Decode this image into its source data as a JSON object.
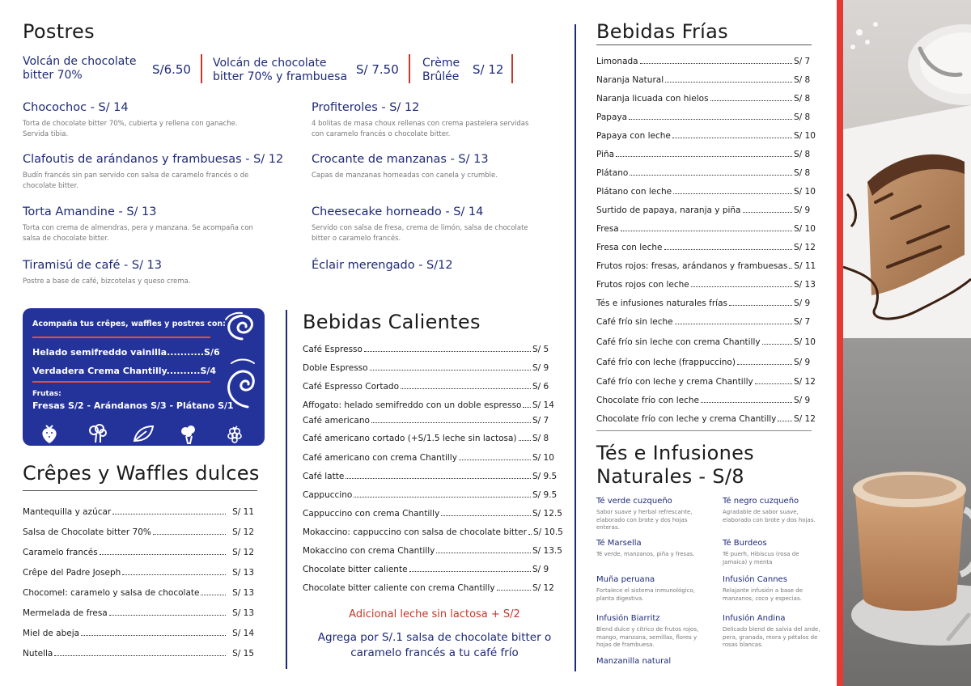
{
  "postres": {
    "title": "Postres",
    "featured": [
      {
        "name": "Volcán de chocolate bitter 70%",
        "price": "S/6.50"
      },
      {
        "name": "Volcán de chocolate bitter 70% y frambuesa",
        "price": "S/ 7.50"
      },
      {
        "name": "Crème Brûlée",
        "price": "S/ 12"
      }
    ],
    "items": [
      {
        "name": "Chocochoc - S/ 14",
        "desc": "Torta de chocolate bitter 70%, cubierta y rellena con ganache. Servida tibia."
      },
      {
        "name": "Profiteroles - S/ 12",
        "desc": "4 bolitas de masa choux rellenas con crema pastelera servidas con caramelo francés o chocolate bitter."
      },
      {
        "name": "Clafoutis de arándanos y frambuesas - S/ 12",
        "desc": "Budín francés sin pan servido con salsa de caramelo francés o de chocolate bitter."
      },
      {
        "name": "Crocante de manzanas - S/ 13",
        "desc": "Capas de manzanas horneadas con canela y crumble."
      },
      {
        "name": "Torta Amandine - S/ 13",
        "desc": "Torta con crema de almendras, pera y manzana. Se acompaña con salsa de chocolate bitter."
      },
      {
        "name": "Cheesecake horneado - S/ 14",
        "desc": "Servido con salsa de fresa, crema de limón, salsa de chocolate bitter o caramelo francés."
      },
      {
        "name": "Tiramisú de café - S/ 13",
        "desc": "Postre a base de café, bizcotelas y queso crema."
      },
      {
        "name": "Éclair merengado - S/12",
        "desc": ""
      }
    ]
  },
  "promo": {
    "title": "Acompaña tus crêpes, waffles y postres con:",
    "item1": "Helado semifreddo vainilla...........S/6",
    "item2": "Verdadera Crema Chantilly..........S/4",
    "frutas_label": "Frutas:",
    "frutas": "Fresas S/2 - Arándanos S/3 - Plátano S/1",
    "icons": [
      "strawberry-icon",
      "broccoli-icon",
      "leaf-icon",
      "cauliflower-icon",
      "raspberry-icon"
    ]
  },
  "crepes": {
    "title": "Crêpes y Waffles dulces",
    "items": [
      {
        "name": "Mantequilla y azúcar",
        "price": "S/ 11"
      },
      {
        "name": "Salsa de Chocolate bitter 70%",
        "price": "S/ 12"
      },
      {
        "name": "Caramelo francés",
        "price": "S/ 12"
      },
      {
        "name": "Crêpe del Padre Joseph",
        "price": "S/ 13"
      },
      {
        "name": "Chocomel: caramelo y salsa de chocolate",
        "price": "S/ 13"
      },
      {
        "name": "Mermelada de fresa",
        "price": "S/ 13"
      },
      {
        "name": "Miel de abeja",
        "price": "S/ 14"
      },
      {
        "name": "Nutella",
        "price": "S/ 15"
      }
    ]
  },
  "calientes": {
    "title": "Bebidas Calientes",
    "items": [
      {
        "name": "Café Espresso",
        "price": "S/ 5"
      },
      {
        "name": "Doble Espresso",
        "price": "S/ 9"
      },
      {
        "name": "Café Espresso Cortado",
        "price": "S/ 6"
      },
      {
        "name": "Affogato: helado semifreddo con un doble espresso",
        "price": "S/ 14"
      },
      {
        "name": "Café americano",
        "price": "S/ 7"
      },
      {
        "name": "Café americano cortado (+S/1.5 leche sin lactosa)",
        "price": "S/ 8"
      },
      {
        "name": "Café americano con crema Chantilly",
        "price": "S/ 10"
      },
      {
        "name": "Café latte",
        "price": "S/ 9.5"
      },
      {
        "name": "Cappuccino",
        "price": "S/ 9.5"
      },
      {
        "name": "Cappuccino con crema Chantilly",
        "price": "S/ 12.5"
      },
      {
        "name": "Mokaccino: cappuccino con salsa de chocolate bitter",
        "price": "S/ 10.5"
      },
      {
        "name": "Mokaccino con crema Chantilly",
        "price": "S/ 13.5"
      },
      {
        "name": "Chocolate bitter caliente",
        "price": "S/ 9"
      },
      {
        "name": "Chocolate bitter caliente con crema Chantilly",
        "price": "S/ 12"
      }
    ],
    "footer1": "Adicional leche sin lactosa + S/2",
    "footer2": "Agrega por S/.1 salsa de chocolate bitter o caramelo francés a tu café frío"
  },
  "frias": {
    "title": "Bebidas Frías",
    "items": [
      {
        "name": "Limonada",
        "price": "S/ 7"
      },
      {
        "name": "Naranja Natural",
        "price": "S/ 8"
      },
      {
        "name": "Naranja licuada con hielos",
        "price": "S/ 8"
      },
      {
        "name": "Papaya",
        "price": "S/ 8"
      },
      {
        "name": "Papaya con leche",
        "price": "S/ 10"
      },
      {
        "name": "Piña",
        "price": "S/ 8"
      },
      {
        "name": "Plátano",
        "price": "S/ 8"
      },
      {
        "name": "Plátano con leche",
        "price": "S/ 10"
      },
      {
        "name": "Surtido de papaya, naranja y piña",
        "price": "S/ 9"
      },
      {
        "name": "Fresa",
        "price": "S/ 10"
      },
      {
        "name": "Fresa con leche",
        "price": "S/ 12"
      },
      {
        "name": "Frutos rojos: fresas, arándanos y frambuesas",
        "price": "S/ 11"
      },
      {
        "name": "Frutos rojos con leche",
        "price": "S/ 13"
      },
      {
        "name": "Tés e infusiones naturales frías",
        "price": "S/ 9"
      },
      {
        "name": "Café frío sin leche",
        "price": "S/ 7"
      },
      {
        "name": "Café frío sin leche con crema Chantilly",
        "price": "S/ 10"
      },
      {
        "name": "Café frío con leche (frappuccino)",
        "price": "S/ 9"
      },
      {
        "name": "Café frío con leche y crema Chantilly",
        "price": "S/ 12"
      },
      {
        "name": "Chocolate frío con leche",
        "price": "S/ 9"
      },
      {
        "name": "Chocolate frío con leche y crema Chantilly",
        "price": "S/ 12"
      }
    ]
  },
  "tes": {
    "title_line1": "Tés e Infusiones",
    "title_line2": "Naturales - S/8",
    "items": [
      {
        "name": "Té verde cuzqueño",
        "desc": "Sabor suave y herbal refrescante, elaborado con brote y dos hojas enteras."
      },
      {
        "name": "Té negro cuzqueño",
        "desc": "Agradable de sabor suave, elaborado con brote y dos hojas."
      },
      {
        "name": "Té Marsella",
        "desc": "Té verde, manzanos, piña y fresas."
      },
      {
        "name": "Té Burdeos",
        "desc": "Té puerh, Hibiscus (rosa de Jamaica) y menta"
      },
      {
        "name": "Muña peruana",
        "desc": "Fortalece el sistema inmunológico, planta digestiva."
      },
      {
        "name": "Infusión Cannes",
        "desc": "Relajante infusión a base de manzanos, coco y especias."
      },
      {
        "name": "Infusión Biarritz",
        "desc": "Blend dulce y cítrico de frutos rojos, mango, manzana, semillas, flores y hojas de frambuesa."
      },
      {
        "name": "Infusión Andina",
        "desc": "Delicado blend de salvia del ande, pera, granada, mora y pétalos de rosas blancas."
      },
      {
        "name": "Manzanilla natural",
        "desc": ""
      }
    ]
  },
  "colors": {
    "navy": "#1e2a78",
    "red": "#e53935",
    "promo_blue": "#24339a"
  }
}
